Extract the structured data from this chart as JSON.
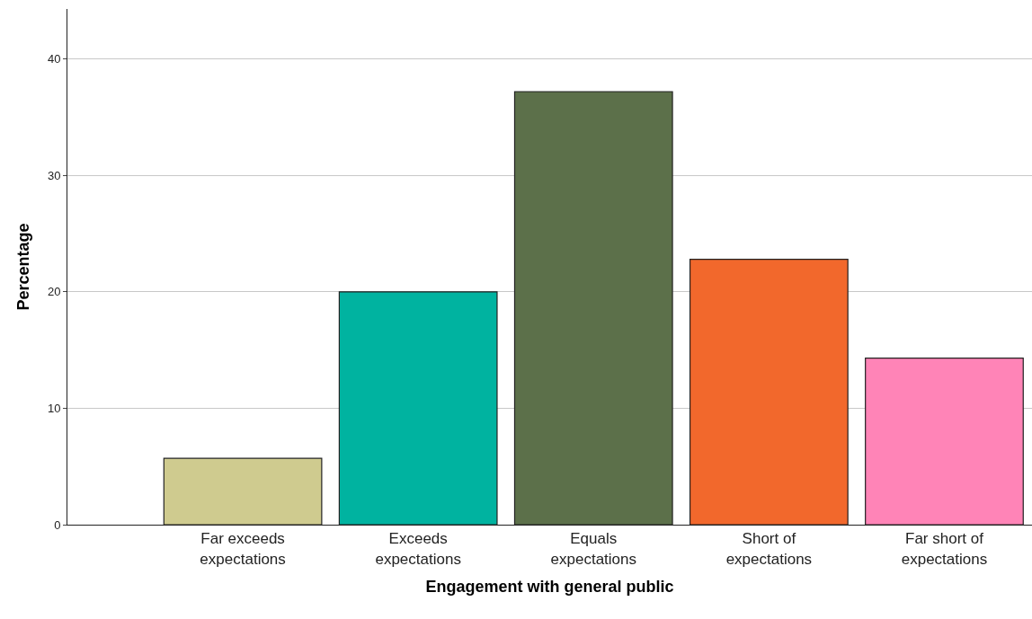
{
  "chart_data": {
    "type": "bar",
    "xlabel": "Engagement with general public",
    "ylabel": "Percentage",
    "categories": [
      "Far exceeds\nexpectations",
      "Exceeds\nexpectations",
      "Equals\nexpectations",
      "Short of\nexpectations",
      "Far short of\nexpectations"
    ],
    "values": [
      5.7,
      20.0,
      37.2,
      22.8,
      14.3
    ],
    "colors": [
      "#cfcb8f",
      "#00b3a0",
      "#5c704a",
      "#f2682c",
      "#ff84b7"
    ],
    "ylim": [
      0,
      44.3
    ],
    "yticks": [
      0,
      10,
      20,
      30,
      40
    ],
    "grid": "y"
  }
}
